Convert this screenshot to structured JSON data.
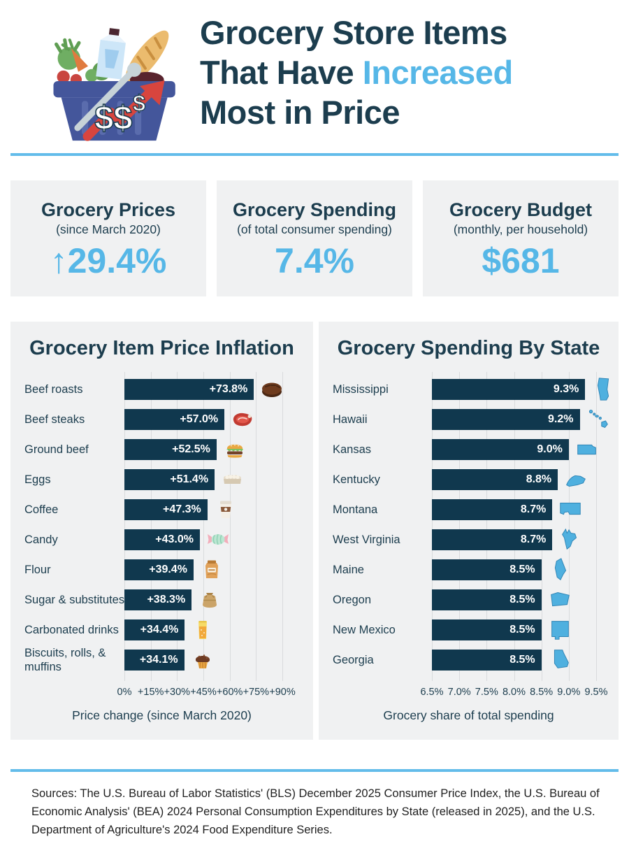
{
  "header": {
    "title_line1": "Grocery Store Items",
    "title_line2_prefix": "That Have ",
    "title_line2_accent": "Increased",
    "title_line3": "Most in Price",
    "illustration": "grocery-basket-with-dollar-signs-and-rising-arrow"
  },
  "colors": {
    "navy_text": "#1C3D4E",
    "bar_navy": "#10384E",
    "accent_blue": "#56B7E7",
    "divider_blue": "#63BCEA",
    "panel_bg": "#F0F1F2",
    "state_blue": "#4FB0DF",
    "gridline": "#D9DBDD"
  },
  "stats": [
    {
      "title": "Grocery Prices",
      "subtitle": "(since March 2020)",
      "arrow": "↑",
      "value": "29.4%"
    },
    {
      "title": "Grocery Spending",
      "subtitle": "(of total consumer spending)",
      "arrow": "",
      "value": "7.4%"
    },
    {
      "title": "Grocery Budget",
      "subtitle": "(monthly, per household)",
      "arrow": "",
      "value": "$681"
    }
  ],
  "chart_data": [
    {
      "type": "bar",
      "orientation": "horizontal",
      "title": "Grocery Item Price Inflation",
      "categories": [
        "Beef roasts",
        "Beef steaks",
        "Ground beef",
        "Eggs",
        "Coffee",
        "Candy",
        "Flour",
        "Sugar & substitutes",
        "Carbonated drinks",
        "Biscuits, rolls, & muffins"
      ],
      "values": [
        73.8,
        57.0,
        52.5,
        51.4,
        47.3,
        43.0,
        39.4,
        38.3,
        34.4,
        34.1
      ],
      "value_labels": [
        "+73.8%",
        "+57.0%",
        "+52.5%",
        "+51.4%",
        "+47.3%",
        "+43.0%",
        "+39.4%",
        "+38.3%",
        "+34.4%",
        "+34.1%"
      ],
      "icons": [
        "beef-roast-icon",
        "beef-steak-icon",
        "ground-beef-icon",
        "eggs-icon",
        "coffee-icon",
        "candy-icon",
        "flour-icon",
        "sugar-icon",
        "carbonated-drink-icon",
        "muffin-icon"
      ],
      "xlabel": "Price change (since March 2020)",
      "xticks": [
        "0%",
        "+15%",
        "+30%",
        "+45%",
        "+60%",
        "+75%",
        "+90%"
      ],
      "xlim": [
        0,
        90
      ],
      "grid": true,
      "legend": "none"
    },
    {
      "type": "bar",
      "orientation": "horizontal",
      "title": "Grocery Spending By State",
      "categories": [
        "Mississippi",
        "Hawaii",
        "Kansas",
        "Kentucky",
        "Montana",
        "West Virginia",
        "Maine",
        "Oregon",
        "New Mexico",
        "Georgia"
      ],
      "values": [
        9.3,
        9.2,
        9.0,
        8.8,
        8.7,
        8.7,
        8.5,
        8.5,
        8.5,
        8.5
      ],
      "value_labels": [
        "9.3%",
        "9.2%",
        "9.0%",
        "8.8%",
        "8.7%",
        "8.7%",
        "8.5%",
        "8.5%",
        "8.5%",
        "8.5%"
      ],
      "icons": [
        "mississippi-state-icon",
        "hawaii-state-icon",
        "kansas-state-icon",
        "kentucky-state-icon",
        "montana-state-icon",
        "west-virginia-state-icon",
        "maine-state-icon",
        "oregon-state-icon",
        "new-mexico-state-icon",
        "georgia-state-icon"
      ],
      "xlabel": "Grocery share of total spending",
      "xticks": [
        "6.5%",
        "7.0%",
        "7.5%",
        "8.0%",
        "8.5%",
        "9.0%",
        "9.5%"
      ],
      "xlim": [
        6.5,
        9.5
      ],
      "grid": true,
      "legend": "none"
    }
  ],
  "footer": {
    "sources": "Sources: The U.S. Bureau of Labor Statistics' (BLS) December 2025 Consumer Price Index, the U.S. Bureau of Economic Analysis' (BEA) 2024 Personal Consumption Expenditures by State (released in 2025), and the U.S. Department of Agriculture's 2024 Food Expenditure Series."
  }
}
